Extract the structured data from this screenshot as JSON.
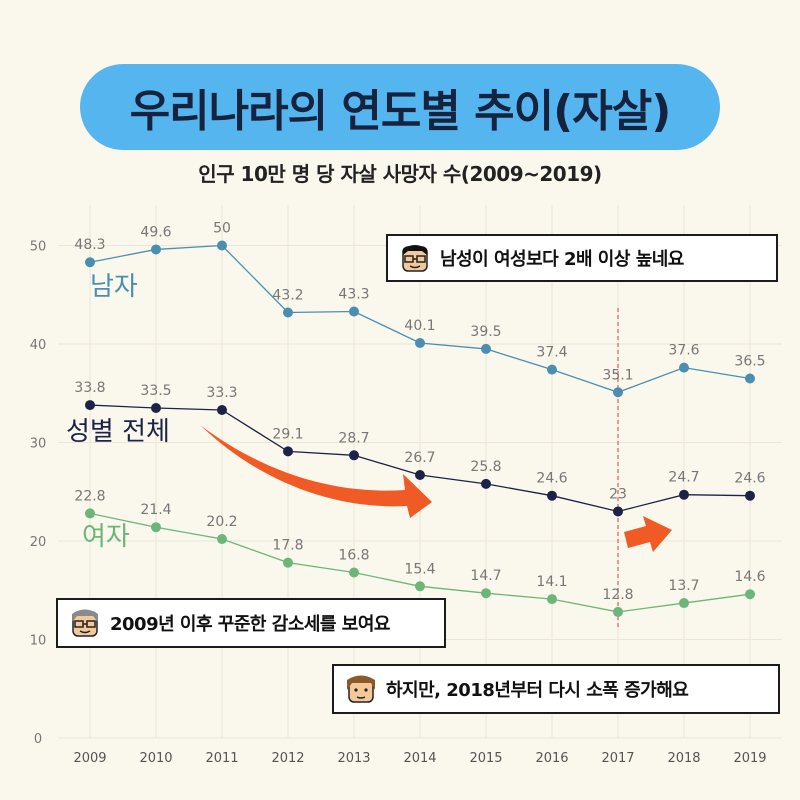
{
  "title": "우리나라의 연도별 추이(자살)",
  "subtitle": "인구 10만 명 당 자살 사망자 수(2009~2019)",
  "callouts": {
    "male_note": "남성이 여성보다 2배 이상 높네요",
    "decline_note": "2009년 이후 꾸준한 감소세를 보여요",
    "rise_note": "하지만, 2018년부터 다시 소폭 증가해요"
  },
  "icons": {
    "male_face": "male-face-icon",
    "gray_face": "gray-hair-face-icon",
    "brown_face": "brown-hair-face-icon",
    "arrow_down": "decline-arrow-icon",
    "arrow_up": "rise-arrow-icon"
  },
  "colors": {
    "background": "#faf7ec",
    "title_pill": "#55b6ef",
    "male": "#4a8fb2",
    "total": "#1c2346",
    "female": "#6db679",
    "arrow": "#f05a24",
    "marker_line": "#e05a5a"
  },
  "chart_data": {
    "type": "line",
    "x": [
      "2009",
      "2010",
      "2011",
      "2012",
      "2013",
      "2014",
      "2015",
      "2016",
      "2017",
      "2018",
      "2019"
    ],
    "ylim": [
      0,
      55
    ],
    "yticks": [
      0,
      10,
      20,
      30,
      40,
      50
    ],
    "grid": true,
    "marker_year": "2017",
    "series": [
      {
        "name": "남자",
        "color": "#4a8fb2",
        "values": [
          48.3,
          49.6,
          50,
          43.2,
          43.3,
          40.1,
          39.5,
          37.4,
          35.1,
          37.6,
          36.5
        ]
      },
      {
        "name": "성별 전체",
        "color": "#1c2346",
        "values": [
          33.8,
          33.5,
          33.3,
          29.1,
          28.7,
          26.7,
          25.8,
          24.6,
          23,
          24.7,
          24.6
        ]
      },
      {
        "name": "여자",
        "color": "#6db679",
        "values": [
          22.8,
          21.4,
          20.2,
          17.8,
          16.8,
          15.4,
          14.7,
          14.1,
          12.8,
          13.7,
          14.6
        ]
      }
    ]
  }
}
